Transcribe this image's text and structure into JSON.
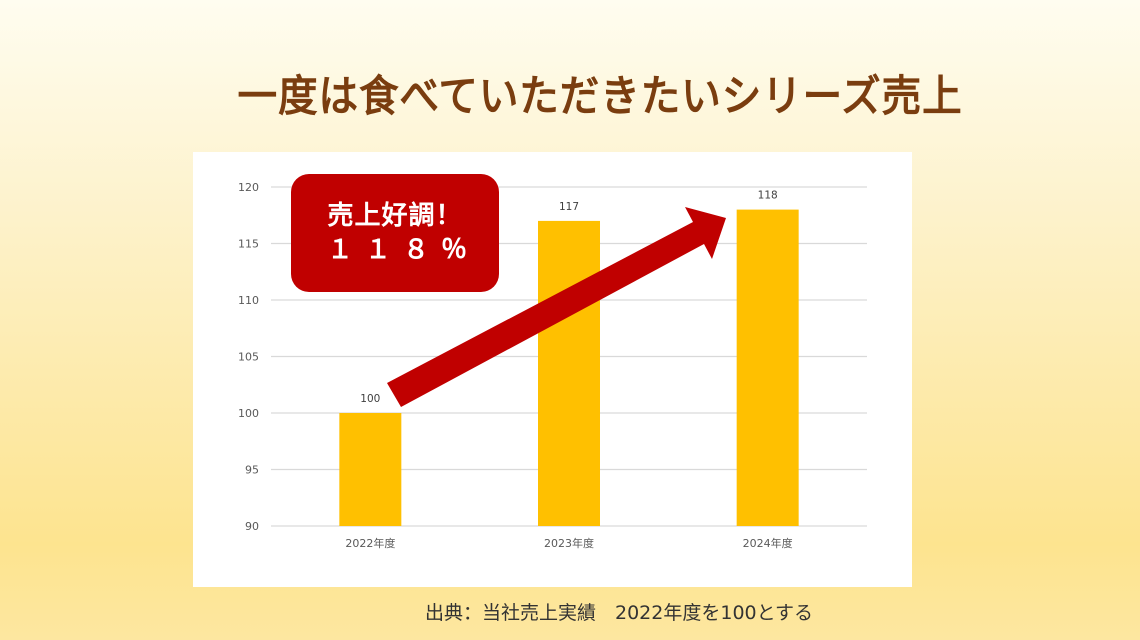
{
  "title": "一度は食べていただきたいシリーズ売上",
  "callout": {
    "line1": "売上好調！",
    "line2": "１１８％",
    "color": "#c00000"
  },
  "source_note": "出典：当社売上実績　2022年度を100とする",
  "colors": {
    "bar": "#ffc000",
    "arrow": "#c00000",
    "title": "#7a3d0f",
    "grid": "#d9d9d9"
  },
  "chart_data": {
    "type": "bar",
    "title": "一度は食べていただきたいシリーズ売上",
    "categories": [
      "2022年度",
      "2023年度",
      "2024年度"
    ],
    "values": [
      100,
      117,
      118
    ],
    "data_labels": [
      "100",
      "117",
      "118"
    ],
    "xlabel": "",
    "ylabel": "",
    "ylim": [
      90,
      120
    ],
    "yticks": [
      90,
      95,
      100,
      105,
      110,
      115,
      120
    ],
    "grid": true,
    "legend": null,
    "annotations": [
      "売上好調！ １１８％",
      "upward arrow from 2022年度 to 2024年度"
    ]
  }
}
